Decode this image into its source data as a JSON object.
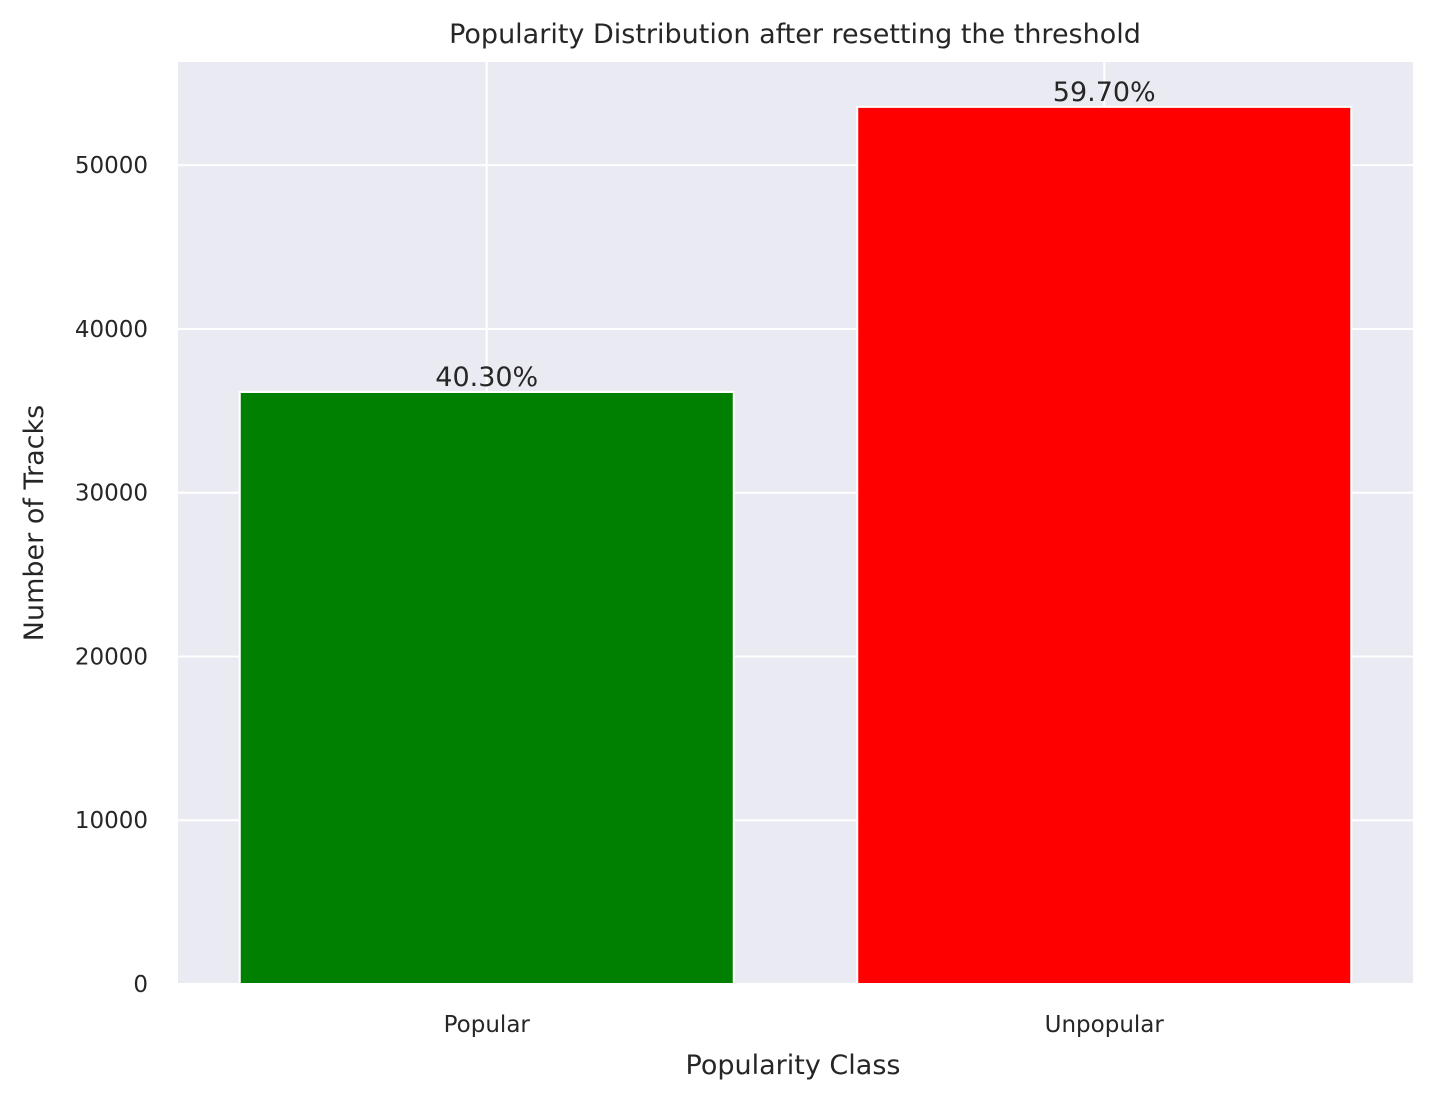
{
  "chart_data": {
    "type": "bar",
    "title": "Popularity Distribution after resetting the threshold",
    "xlabel": "Popularity Class",
    "ylabel": "Number of Tracks",
    "categories": [
      "Popular",
      "Unpopular"
    ],
    "values": [
      36150,
      53560
    ],
    "data_labels": [
      "40.30%",
      "59.70%"
    ],
    "colors": [
      "#008000",
      "#ff0000"
    ],
    "ylim": [
      0,
      56300
    ],
    "yticks": [
      0,
      10000,
      20000,
      30000,
      40000,
      50000
    ],
    "ytick_labels": [
      "0",
      "10000",
      "20000",
      "30000",
      "40000",
      "50000"
    ],
    "grid": true,
    "background": "#eaeaf2",
    "legend": "none"
  }
}
